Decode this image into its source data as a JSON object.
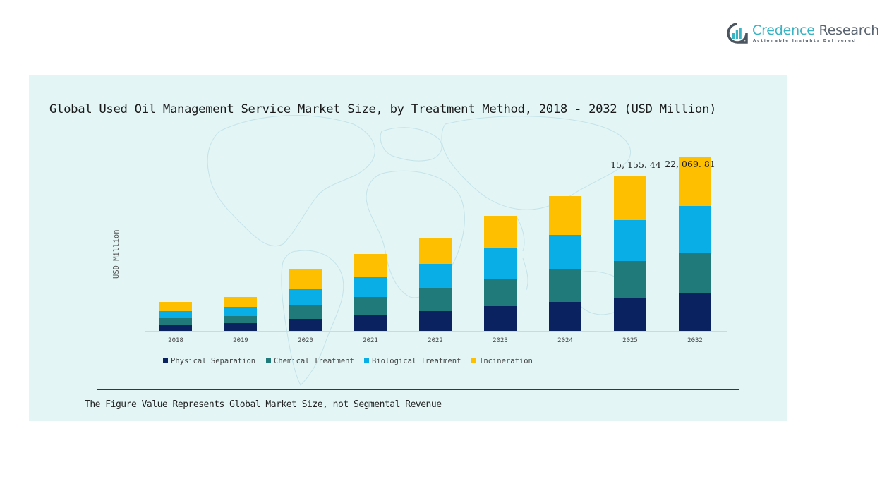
{
  "brand": {
    "name_part1": "Credence",
    "name_part2": " Research",
    "tagline": "Actionable Insights Delivered"
  },
  "footnote": "The Figure Value Represents Global Market Size, not Segmental Revenue",
  "chart_data": {
    "type": "bar",
    "stacked": true,
    "title": "Global Used Oil Management Service Market Size, by Treatment Method, 2018 - 2032 (USD Million)",
    "xlabel": "",
    "ylabel": "USD Million",
    "categories": [
      "2018",
      "2019",
      "2020",
      "2021",
      "2022",
      "2023",
      "2024",
      "2025",
      "2032"
    ],
    "series": [
      {
        "name": "Physical Separation",
        "color": "#0b2260",
        "values": [
          554,
          761,
          1176,
          1522,
          1938,
          2422,
          2837,
          3252,
          4736
        ]
      },
      {
        "name": "Chemical Treatment",
        "color": "#217a7a",
        "values": [
          692,
          692,
          1384,
          1799,
          2284,
          2630,
          3183,
          3599,
          5183
        ]
      },
      {
        "name": "Biological Treatment",
        "color": "#0aaee6",
        "values": [
          692,
          900,
          1592,
          2007,
          2353,
          3045,
          3391,
          4014,
          5897
        ]
      },
      {
        "name": "Incineration",
        "color": "#fdbf00",
        "values": [
          900,
          969,
          1868,
          2214,
          2560,
          3183,
          3806,
          4290,
          6254
        ]
      }
    ],
    "data_labels": [
      {
        "category": "2025",
        "text": "15, 155. 44",
        "value": 15155.44
      },
      {
        "category": "2032",
        "text": "22, 069. 81",
        "value": 22069.81
      }
    ],
    "ylim": [
      0,
      22069.81
    ],
    "grid": false,
    "legend_position": "bottom-left"
  }
}
